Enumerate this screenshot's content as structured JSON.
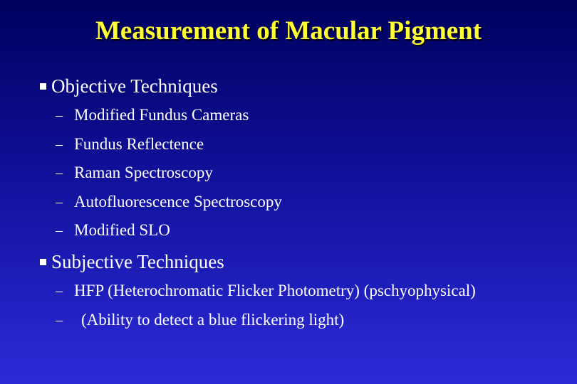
{
  "title": "Measurement of Macular Pigment",
  "sections": [
    {
      "heading": "Objective Techniques",
      "items": [
        "Modified Fundus Cameras",
        "Fundus Reflectence",
        "Raman Spectroscopy",
        "Autofluorescence Spectroscopy",
        "Modified SLO"
      ]
    },
    {
      "heading": "Subjective Techniques",
      "items": [
        "HFP (Heterochromatic Flicker Photometry) (pschyophysical)",
        "(Ability to detect a blue flickering light)"
      ]
    }
  ]
}
